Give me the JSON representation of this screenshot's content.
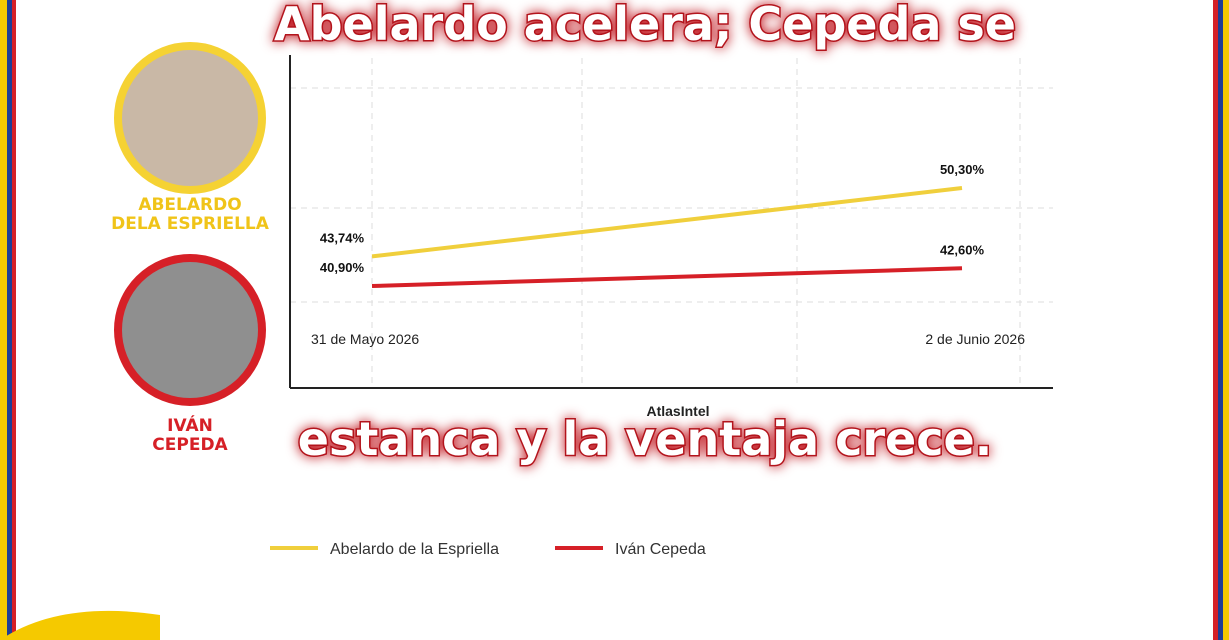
{
  "chart_data": {
    "type": "line",
    "title": [
      "Abelardo acelera; Cepeda se",
      "estanca y la ventaja crece."
    ],
    "categories": [
      "31 de Mayo 2026",
      "2 de Junio 2026"
    ],
    "series": [
      {
        "name": "Abelardo de la Espriella",
        "color": "#f0cf3c",
        "values": [
          43.74,
          50.3
        ],
        "value_labels": [
          "43,74%",
          "50,30%"
        ]
      },
      {
        "name": "Iván Cepeda",
        "color": "#d62027",
        "values": [
          40.9,
          42.6
        ],
        "value_labels": [
          "40,90%",
          "42,60%"
        ]
      }
    ],
    "source": "AtlasIntel",
    "candidates": [
      [
        "ABELARDO",
        "DELA ESPRIELLA"
      ],
      [
        "IVÁN",
        "CEPEDA"
      ]
    ]
  }
}
